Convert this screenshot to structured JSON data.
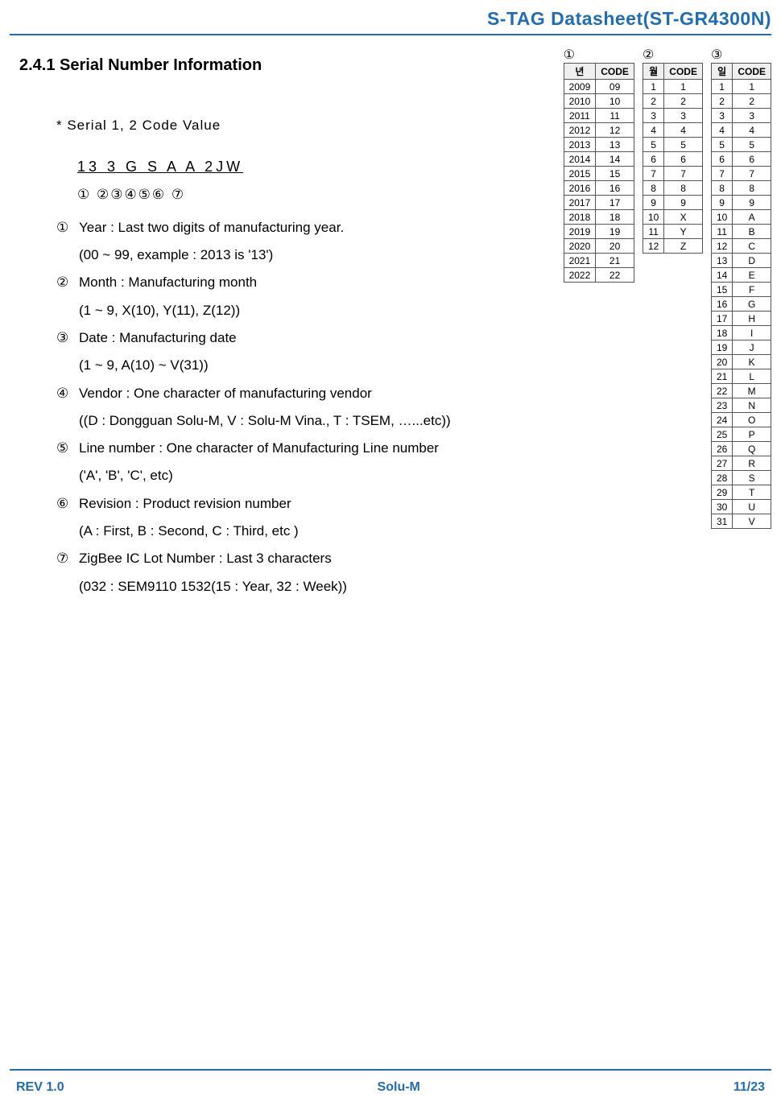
{
  "header": {
    "title": "S-TAG Datasheet(ST-GR4300N)"
  },
  "section": {
    "title": "2.4.1 Serial Number Information"
  },
  "serial": {
    "label": "* Serial 1, 2 Code Value",
    "code": "13 3 G S A A 2JW",
    "markers": "① ②③④⑤⑥ ⑦"
  },
  "items": [
    {
      "num": "①",
      "line1": "Year : Last two digits of manufacturing year.",
      "line2": "(00 ~ 99, example : 2013 is '13')"
    },
    {
      "num": "②",
      "line1": "Month : Manufacturing month",
      "line2": "(1 ~ 9, X(10), Y(11), Z(12))"
    },
    {
      "num": "③",
      "line1": "Date : Manufacturing date",
      "line2": "(1 ~ 9, A(10) ~ V(31))"
    },
    {
      "num": "④",
      "line1": "Vendor : One character of manufacturing vendor",
      "line2": "((D : Dongguan Solu-M, V : Solu-M Vina., T : TSEM, …...etc))"
    },
    {
      "num": "⑤",
      "line1": "Line number : One character of Manufacturing Line number",
      "line2": "('A', 'B', 'C', etc)"
    },
    {
      "num": "⑥",
      "line1": "Revision : Product revision number",
      "line2": "(A : First, B : Second, C : Third, etc )"
    },
    {
      "num": "⑦",
      "line1": "ZigBee IC Lot Number : Last 3 characters",
      "line2": "(032 : SEM9110 1532(15 : Year, 32 : Week))"
    }
  ],
  "tables": {
    "year": {
      "tag": "①",
      "h1": "년",
      "h2": "CODE",
      "rows": [
        [
          "2009",
          "09"
        ],
        [
          "2010",
          "10"
        ],
        [
          "2011",
          "11"
        ],
        [
          "2012",
          "12"
        ],
        [
          "2013",
          "13"
        ],
        [
          "2014",
          "14"
        ],
        [
          "2015",
          "15"
        ],
        [
          "2016",
          "16"
        ],
        [
          "2017",
          "17"
        ],
        [
          "2018",
          "18"
        ],
        [
          "2019",
          "19"
        ],
        [
          "2020",
          "20"
        ],
        [
          "2021",
          "21"
        ],
        [
          "2022",
          "22"
        ]
      ]
    },
    "month": {
      "tag": "②",
      "h1": "월",
      "h2": "CODE",
      "rows": [
        [
          "1",
          "1"
        ],
        [
          "2",
          "2"
        ],
        [
          "3",
          "3"
        ],
        [
          "4",
          "4"
        ],
        [
          "5",
          "5"
        ],
        [
          "6",
          "6"
        ],
        [
          "7",
          "7"
        ],
        [
          "8",
          "8"
        ],
        [
          "9",
          "9"
        ],
        [
          "10",
          "X"
        ],
        [
          "11",
          "Y"
        ],
        [
          "12",
          "Z"
        ]
      ]
    },
    "day": {
      "tag": "③",
      "h1": "일",
      "h2": "CODE",
      "rows": [
        [
          "1",
          "1"
        ],
        [
          "2",
          "2"
        ],
        [
          "3",
          "3"
        ],
        [
          "4",
          "4"
        ],
        [
          "5",
          "5"
        ],
        [
          "6",
          "6"
        ],
        [
          "7",
          "7"
        ],
        [
          "8",
          "8"
        ],
        [
          "9",
          "9"
        ],
        [
          "10",
          "A"
        ],
        [
          "11",
          "B"
        ],
        [
          "12",
          "C"
        ],
        [
          "13",
          "D"
        ],
        [
          "14",
          "E"
        ],
        [
          "15",
          "F"
        ],
        [
          "16",
          "G"
        ],
        [
          "17",
          "H"
        ],
        [
          "18",
          "I"
        ],
        [
          "19",
          "J"
        ],
        [
          "20",
          "K"
        ],
        [
          "21",
          "L"
        ],
        [
          "22",
          "M"
        ],
        [
          "23",
          "N"
        ],
        [
          "24",
          "O"
        ],
        [
          "25",
          "P"
        ],
        [
          "26",
          "Q"
        ],
        [
          "27",
          "R"
        ],
        [
          "28",
          "S"
        ],
        [
          "29",
          "T"
        ],
        [
          "30",
          "U"
        ],
        [
          "31",
          "V"
        ]
      ]
    }
  },
  "footer": {
    "left": "REV 1.0",
    "center": "Solu-M",
    "right": "11/23"
  },
  "style": {
    "accent_color": "#1f6db5",
    "text_color": "#000000",
    "table_border_color": "#555555",
    "table_header_bg": "#efefef",
    "body_font_size_pt": 13,
    "title_font_size_pt": 17,
    "table_font_size_pt": 9
  }
}
